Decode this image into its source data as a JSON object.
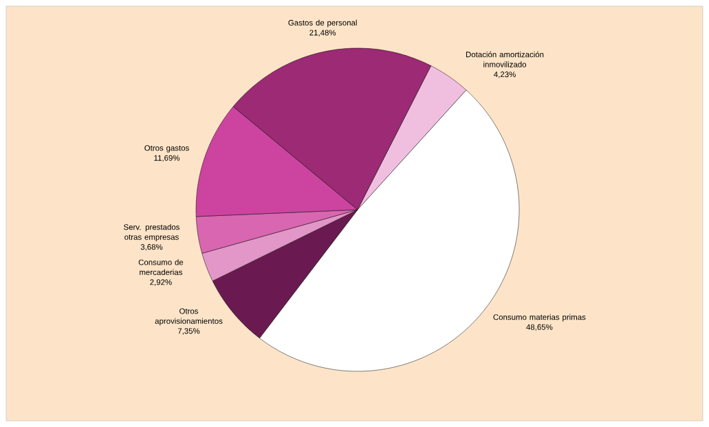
{
  "chart_data": {
    "type": "pie",
    "categories": [
      "Dotación amortización inmovilizado",
      "Consumo materias primas",
      "Otros aprovisionamientos",
      "Consumo de mercaderias",
      "Serv. prestados otras empresas",
      "Otros gastos",
      "Gastos de personal"
    ],
    "values": [
      4.23,
      48.65,
      7.35,
      2.92,
      3.68,
      11.69,
      21.48
    ],
    "value_labels": [
      "4,23%",
      "48,65%",
      "7,35%",
      "2,92%",
      "3,68%",
      "11,69%",
      "21,48%"
    ],
    "colors": [
      "#f0bfe0",
      "#ffffff",
      "#6a1a50",
      "#e396c8",
      "#d966b0",
      "#cc44a0",
      "#9c2a74"
    ]
  }
}
